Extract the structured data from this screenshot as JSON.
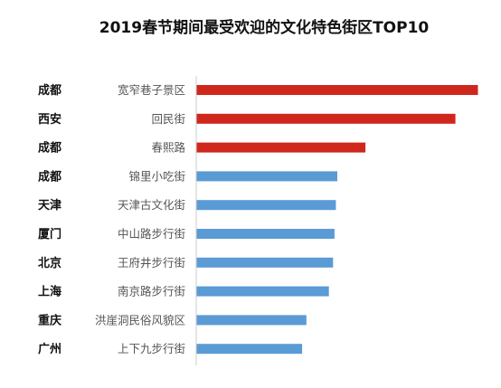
{
  "chart_data": {
    "type": "bar",
    "orientation": "horizontal",
    "title": "2019春节期间最受欢迎的文化特色街区TOP10",
    "xlabel": "",
    "ylabel": "",
    "categories": [
      "宽窄巷子景区",
      "回民街",
      "春熙路",
      "锦里小吃街",
      "天津古文化街",
      "中山路步行街",
      "王府井步行街",
      "南京路步行街",
      "洪崖洞民俗风貌区",
      "上下九步行街"
    ],
    "cities": [
      "成都",
      "西安",
      "成都",
      "成都",
      "天津",
      "厦门",
      "北京",
      "上海",
      "重庆",
      "广州"
    ],
    "values": [
      100,
      92,
      60,
      50,
      49.5,
      49,
      48.5,
      47,
      39,
      37.5
    ],
    "xlim": [
      0,
      100
    ],
    "grid": false,
    "legend": "none",
    "colors": {
      "top3": "#d0271d",
      "rest": "#5b9bd5",
      "axis": "#cccccc"
    }
  }
}
